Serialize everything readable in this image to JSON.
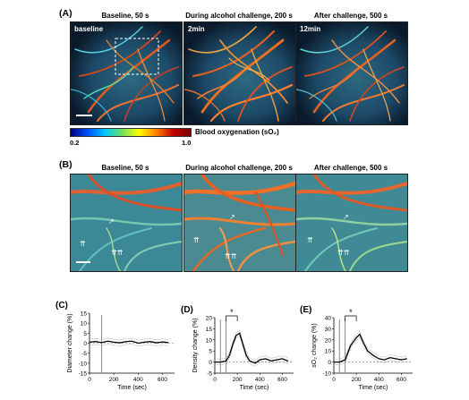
{
  "panel_a": {
    "label": "(A)",
    "titles": [
      "Baseline, 50 s",
      "During alcohol challenge, 200 s",
      "After challenge, 500 s"
    ],
    "insets": [
      "baseline",
      "2min",
      "12min"
    ],
    "colorbar": {
      "min": "0.2",
      "max": "1.0",
      "label": "Blood oxygenation (sO₂)"
    }
  },
  "panel_b": {
    "label": "(B)",
    "titles": [
      "Baseline, 50 s",
      "During alcohol challenge, 200 s",
      "After challenge, 500 s"
    ]
  },
  "chart_data": [
    {
      "label": "(C)",
      "type": "line",
      "ylabel": "Diameter change (%)",
      "xlabel": "Time (sec)",
      "ylim": [
        -15,
        15
      ],
      "yticks": [
        -15,
        -10,
        -5,
        0,
        5,
        10,
        15
      ],
      "xlim": [
        0,
        700
      ],
      "xticks": [
        0,
        200,
        400,
        600
      ],
      "marker_x": [
        100
      ],
      "significance": "",
      "series": [
        {
          "x": [
            0,
            50,
            100,
            150,
            200,
            250,
            300,
            350,
            400,
            450,
            500,
            550,
            600,
            650
          ],
          "values": [
            0.5,
            0.8,
            0.3,
            1.0,
            0.5,
            0.2,
            0.8,
            1.0,
            0.0,
            0.5,
            0.8,
            0.2,
            0.6,
            0.3
          ]
        }
      ]
    },
    {
      "label": "(D)",
      "type": "line",
      "ylabel": "Density change (%)",
      "xlabel": "Time (sec)",
      "ylim": [
        -5,
        20
      ],
      "yticks": [
        -5,
        0,
        5,
        10,
        15,
        20
      ],
      "xlim": [
        0,
        700
      ],
      "xticks": [
        0,
        200,
        400,
        600
      ],
      "marker_x": [
        50,
        100
      ],
      "significance": "*",
      "series": [
        {
          "x": [
            0,
            50,
            100,
            130,
            160,
            190,
            220,
            250,
            280,
            310,
            360,
            400,
            450,
            500,
            550,
            600,
            650
          ],
          "values": [
            0,
            0,
            0.5,
            3,
            8,
            12,
            13,
            8,
            3,
            0.5,
            -0.5,
            1,
            1.5,
            0.5,
            1,
            1.5,
            0.5
          ]
        }
      ]
    },
    {
      "label": "(E)",
      "type": "line",
      "ylabel": "sO₂ change (%)",
      "xlabel": "Time (sec)",
      "ylim": [
        -10,
        40
      ],
      "yticks": [
        -10,
        0,
        10,
        20,
        30,
        40
      ],
      "xlim": [
        0,
        700
      ],
      "xticks": [
        0,
        200,
        400,
        600
      ],
      "marker_x": [
        50,
        100
      ],
      "significance": "*",
      "series": [
        {
          "x": [
            0,
            50,
            100,
            150,
            200,
            230,
            260,
            300,
            350,
            400,
            450,
            500,
            550,
            600,
            650
          ],
          "values": [
            0,
            0,
            2,
            15,
            22,
            25,
            18,
            10,
            6,
            3,
            2,
            4,
            3,
            2,
            3
          ]
        }
      ]
    }
  ]
}
